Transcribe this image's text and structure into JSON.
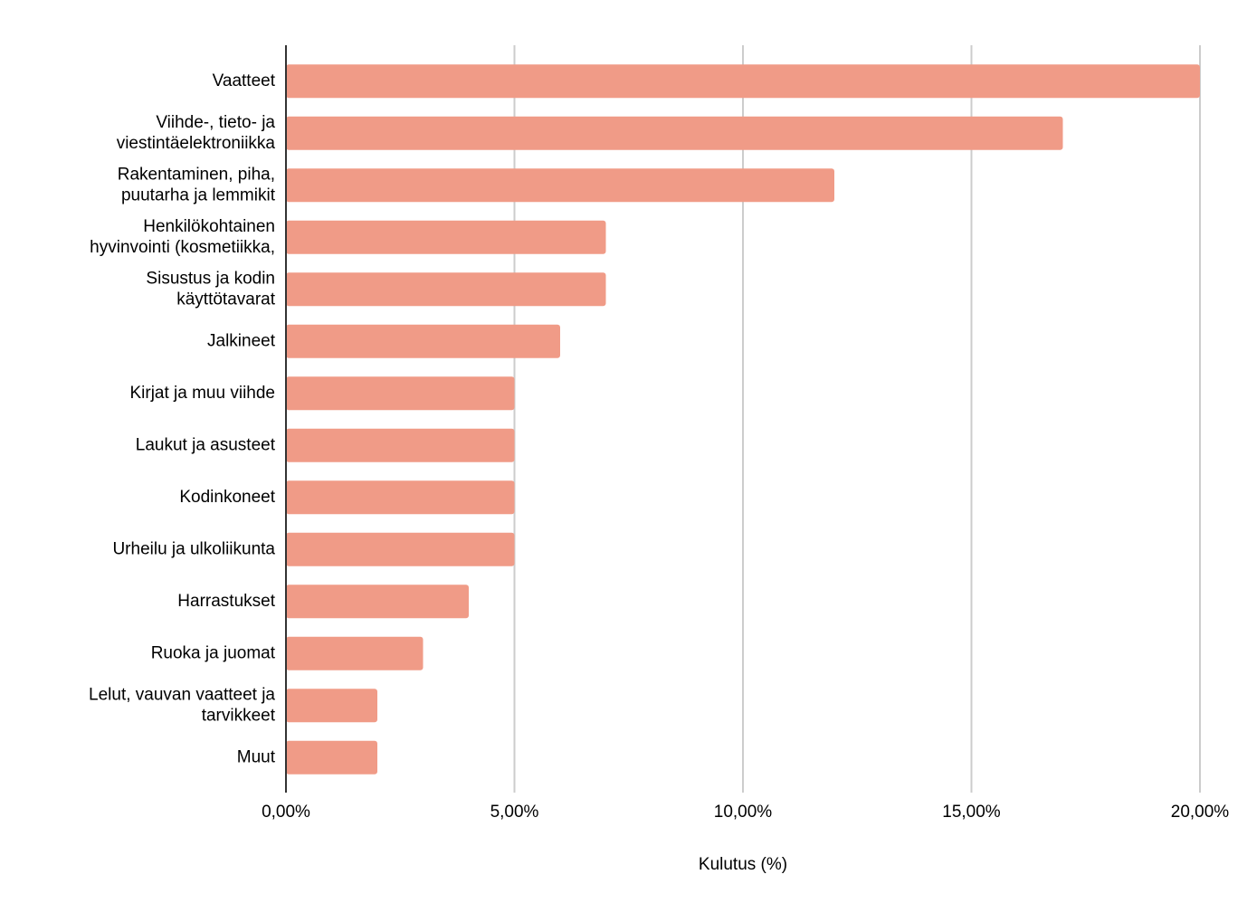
{
  "chart_data": {
    "type": "bar",
    "orientation": "horizontal",
    "x_label": "Kulutus (%)",
    "categories": [
      "Vaatteet",
      "Viihde-, tieto- ja\nviestintäelektroniikka",
      "Rakentaminen, piha,\npuutarha ja lemmikit",
      "Henkilökohtainen\nhyvinvointi (kosmetiikka,",
      "Sisustus ja kodin\nkäyttötavarat",
      "Jalkineet",
      "Kirjat ja muu viihde",
      "Laukut ja asusteet",
      "Kodinkoneet",
      "Urheilu ja ulkoliikunta",
      "Harrastukset",
      "Ruoka ja juomat",
      "Lelut, vauvan vaatteet ja\ntarvikkeet",
      "Muut"
    ],
    "values": [
      20,
      17,
      12,
      7,
      7,
      6,
      5,
      5,
      5,
      5,
      4,
      3,
      2,
      2
    ],
    "color": "#f09b87",
    "xlim": [
      0,
      20
    ],
    "xticks": [
      {
        "value": 0,
        "label": "0,00%"
      },
      {
        "value": 5,
        "label": "5,00%"
      },
      {
        "value": 10,
        "label": "10,00%"
      },
      {
        "value": 15,
        "label": "15,00%"
      },
      {
        "value": 20,
        "label": "20,00%"
      }
    ],
    "grid": true
  }
}
